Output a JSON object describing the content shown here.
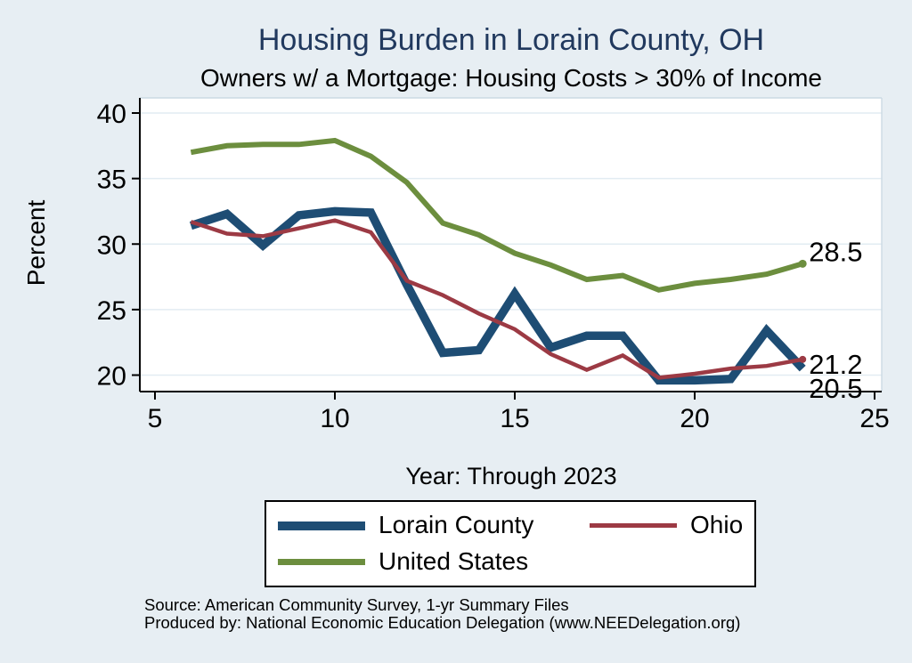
{
  "figure": {
    "title": "Housing Burden in Lorain County, OH",
    "subtitle": "Owners w/ a Mortgage: Housing Costs > 30% of Income",
    "source_line1": "Source: American Community Survey, 1-yr Summary Files",
    "source_line2": "Produced by: National Economic Education Delegation (www.NEEDelegation.org)",
    "colors": {
      "background": "#e7eef3",
      "plot_background": "#ffffff",
      "gridline": "#e2ecf2",
      "frame_light": "#ccdae3",
      "axis": "#000000",
      "title_text": "#21395e"
    }
  },
  "chart_data": {
    "type": "line",
    "title": "Housing Burden in Lorain County, OH",
    "subtitle": "Owners w/ a Mortgage: Housing Costs > 30% of Income",
    "xlabel": "Year: Through 2023",
    "ylabel": "Percent",
    "xlim": [
      5,
      25
    ],
    "ylim": [
      20,
      40
    ],
    "x_ticks": [
      5,
      10,
      15,
      20,
      25
    ],
    "y_ticks": [
      20,
      25,
      30,
      35,
      40
    ],
    "grid": true,
    "legend_position": "bottom",
    "x": [
      6,
      7,
      8,
      9,
      10,
      11,
      12,
      13,
      14,
      15,
      16,
      17,
      18,
      19,
      20,
      21,
      22,
      23
    ],
    "series": [
      {
        "name": "Lorain County",
        "color": "#1e4d74",
        "line_width": 9.5,
        "end_label": "20.5",
        "end_marker": false,
        "values": [
          31.4,
          32.3,
          29.9,
          32.2,
          32.5,
          32.4,
          26.9,
          21.7,
          21.9,
          26.2,
          22.1,
          23.0,
          23.0,
          19.6,
          19.6,
          19.7,
          23.4,
          20.5
        ]
      },
      {
        "name": "Ohio",
        "color": "#9c3a44",
        "line_width": 4.5,
        "end_label": "21.2",
        "end_marker": true,
        "values": [
          31.7,
          30.8,
          30.6,
          31.2,
          31.8,
          30.9,
          27.2,
          26.1,
          24.7,
          23.5,
          21.6,
          20.4,
          21.5,
          19.8,
          20.1,
          20.5,
          20.7,
          21.2
        ]
      },
      {
        "name": "United States",
        "color": "#6c8e3e",
        "line_width": 6,
        "end_label": "28.5",
        "end_marker": true,
        "values": [
          37.0,
          37.5,
          37.6,
          37.6,
          37.9,
          36.7,
          34.7,
          31.6,
          30.7,
          29.3,
          28.4,
          27.3,
          27.6,
          26.5,
          27.0,
          27.3,
          27.7,
          28.5
        ]
      }
    ]
  }
}
